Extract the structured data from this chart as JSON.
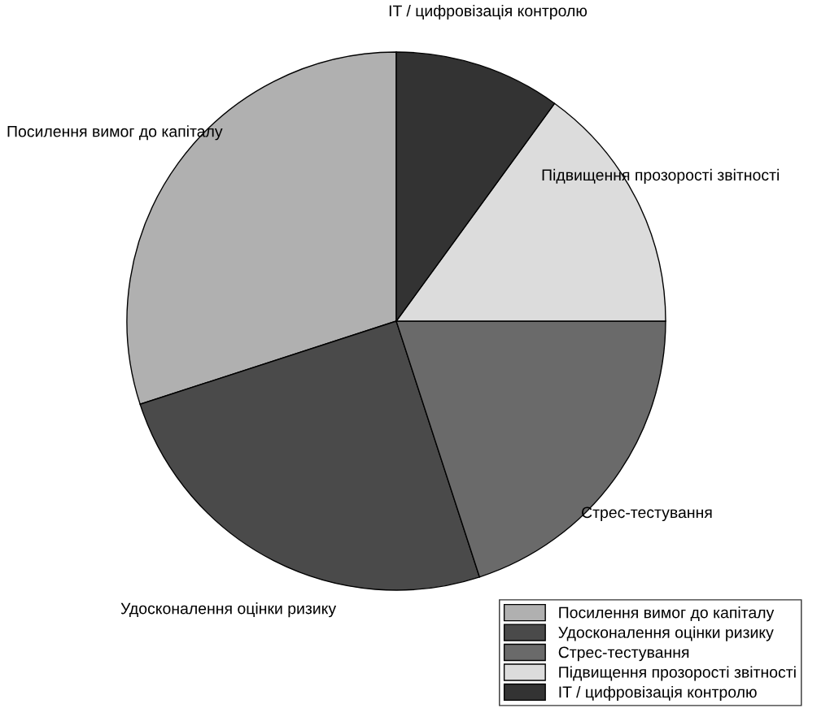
{
  "chart_data": {
    "type": "pie",
    "categories": [
      "Посилення вимог до капіталу",
      "Удосконалення оцінки ризику",
      "Стрес-тестування",
      "Підвищення прозорості звітності",
      "IT / цифровізація контролю"
    ],
    "values": [
      30,
      25,
      20,
      15,
      10
    ],
    "colors": [
      "#b0b0b0",
      "#4a4a4a",
      "#6a6a6a",
      "#dcdcdc",
      "#333333"
    ],
    "legend": "bottom right"
  }
}
